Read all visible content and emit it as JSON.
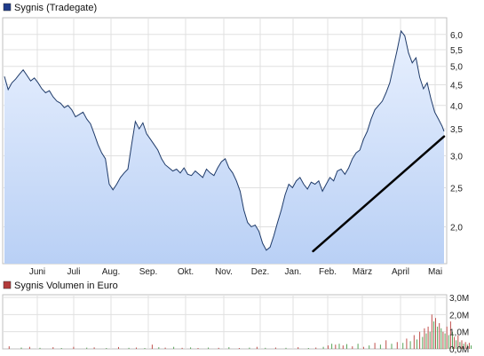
{
  "chart_data": [
    {
      "type": "area",
      "legend": "Sygnis (Tradegate)",
      "legend_color": "#1f3b8a",
      "line_color": "#1f3b6a",
      "fill_top_color": "#e8f0fe",
      "fill_bottom_color": "#b9d0f5",
      "y_scale": "log",
      "ylim": [
        1.62,
        6.6
      ],
      "y_ticks": [
        "6,0",
        "5,5",
        "5,0",
        "4,5",
        "4,0",
        "3,5",
        "3,0",
        "2,5",
        "2,0"
      ],
      "y_tick_values": [
        6.0,
        5.5,
        5.0,
        4.5,
        4.0,
        3.5,
        3.0,
        2.5,
        2.0
      ],
      "x_ticks": [
        "Juni",
        "Juli",
        "Aug.",
        "Sep.",
        "Okt.",
        "Nov.",
        "Dez.",
        "Jan.",
        "Feb.",
        "März",
        "April",
        "Mai"
      ],
      "x": [
        0,
        4,
        8,
        12,
        16,
        20,
        24,
        28,
        32,
        36,
        40,
        44,
        48,
        52,
        56,
        60,
        64,
        68,
        72,
        76,
        80,
        84,
        88,
        92,
        96,
        100,
        104,
        108,
        112,
        116,
        120,
        124,
        128,
        132,
        136,
        140,
        144,
        148,
        152,
        156,
        160,
        164,
        168,
        172,
        176,
        180,
        184,
        188,
        192,
        196,
        200,
        204,
        208,
        212,
        216,
        220,
        224,
        228,
        232,
        236,
        240,
        244,
        248,
        252,
        256,
        260,
        264,
        268,
        272,
        276,
        280,
        284,
        288,
        292,
        296,
        300,
        304,
        308,
        312,
        316,
        320,
        324,
        328,
        332,
        336,
        340,
        344,
        348,
        352,
        356,
        360,
        364,
        368,
        372,
        376,
        380,
        384,
        388,
        392,
        396,
        400,
        404,
        408,
        412,
        416,
        420,
        424,
        428,
        432,
        436,
        440,
        444,
        448,
        452,
        456,
        460,
        464,
        468,
        470
      ],
      "values": [
        4.72,
        4.38,
        4.55,
        4.65,
        4.78,
        4.9,
        4.75,
        4.6,
        4.68,
        4.55,
        4.4,
        4.3,
        4.35,
        4.2,
        4.1,
        4.05,
        3.95,
        4.0,
        3.9,
        3.75,
        3.8,
        3.85,
        3.7,
        3.6,
        3.4,
        3.2,
        3.05,
        2.95,
        2.55,
        2.47,
        2.55,
        2.65,
        2.72,
        2.78,
        3.2,
        3.65,
        3.5,
        3.62,
        3.4,
        3.3,
        3.2,
        3.1,
        2.95,
        2.85,
        2.8,
        2.75,
        2.78,
        2.72,
        2.8,
        2.7,
        2.68,
        2.75,
        2.7,
        2.65,
        2.78,
        2.72,
        2.68,
        2.8,
        2.9,
        2.95,
        2.8,
        2.72,
        2.6,
        2.45,
        2.2,
        2.05,
        2.0,
        2.02,
        1.95,
        1.82,
        1.75,
        1.78,
        1.9,
        2.05,
        2.2,
        2.4,
        2.55,
        2.5,
        2.6,
        2.65,
        2.55,
        2.48,
        2.58,
        2.55,
        2.6,
        2.45,
        2.55,
        2.65,
        2.6,
        2.75,
        2.78,
        2.7,
        2.8,
        2.95,
        3.05,
        3.1,
        3.3,
        3.45,
        3.7,
        3.9,
        4.0,
        4.1,
        4.3,
        4.55,
        5.0,
        5.5,
        6.12,
        5.95,
        5.4,
        5.1,
        5.25,
        4.7,
        4.4,
        4.55,
        4.15,
        3.85,
        3.7,
        3.55,
        3.45
      ],
      "trendline": {
        "x": [
          330,
          470
        ],
        "values": [
          1.74,
          3.35
        ],
        "color": "#000000"
      }
    },
    {
      "type": "bar",
      "legend": "Sygnis Volumen in Euro",
      "legend_color": "#b23a3a",
      "ylim": [
        0,
        3.0
      ],
      "y_ticks": [
        "3,0M",
        "2,0M",
        "1,0M",
        "0,0M"
      ],
      "y_tick_values": [
        3.0,
        2.0,
        1.0,
        0.0
      ],
      "x": [
        5,
        18,
        27,
        38,
        52,
        61,
        74,
        88,
        96,
        109,
        122,
        133,
        141,
        150,
        158,
        165,
        172,
        181,
        190,
        199,
        207,
        218,
        229,
        240,
        251,
        262,
        270,
        279,
        290,
        301,
        314,
        325,
        333,
        341,
        346,
        350,
        354,
        358,
        362,
        366,
        372,
        378,
        384,
        390,
        396,
        402,
        408,
        414,
        420,
        426,
        430,
        434,
        438,
        441,
        444,
        447,
        449,
        451,
        453,
        455,
        457,
        459,
        461,
        463,
        465,
        467,
        469,
        471,
        473,
        475,
        477,
        479,
        481,
        483,
        485,
        487,
        489,
        491,
        493,
        495,
        497,
        499
      ],
      "values": [
        0.15,
        0.08,
        0.12,
        0.06,
        0.1,
        0.05,
        0.12,
        0.07,
        0.09,
        0.05,
        0.11,
        0.06,
        0.08,
        0.05,
        0.25,
        0.1,
        0.07,
        0.12,
        0.06,
        0.09,
        0.05,
        0.08,
        0.06,
        0.1,
        0.05,
        0.07,
        0.12,
        0.06,
        0.08,
        0.06,
        0.1,
        0.05,
        0.08,
        0.12,
        0.2,
        0.3,
        0.25,
        0.3,
        0.2,
        0.28,
        0.15,
        0.3,
        0.12,
        0.2,
        0.35,
        0.25,
        0.5,
        0.3,
        0.4,
        0.35,
        0.6,
        0.45,
        0.8,
        0.55,
        1.0,
        0.7,
        1.2,
        0.9,
        1.3,
        1.0,
        2.0,
        1.6,
        1.8,
        1.3,
        1.5,
        1.2,
        1.0,
        0.9,
        1.3,
        0.8,
        1.6,
        1.0,
        0.7,
        0.5,
        0.8,
        0.4,
        0.5,
        0.3,
        0.4,
        0.25,
        0.35,
        0.2
      ],
      "colors": [
        "#c0504d",
        "#5aa55a"
      ]
    }
  ]
}
